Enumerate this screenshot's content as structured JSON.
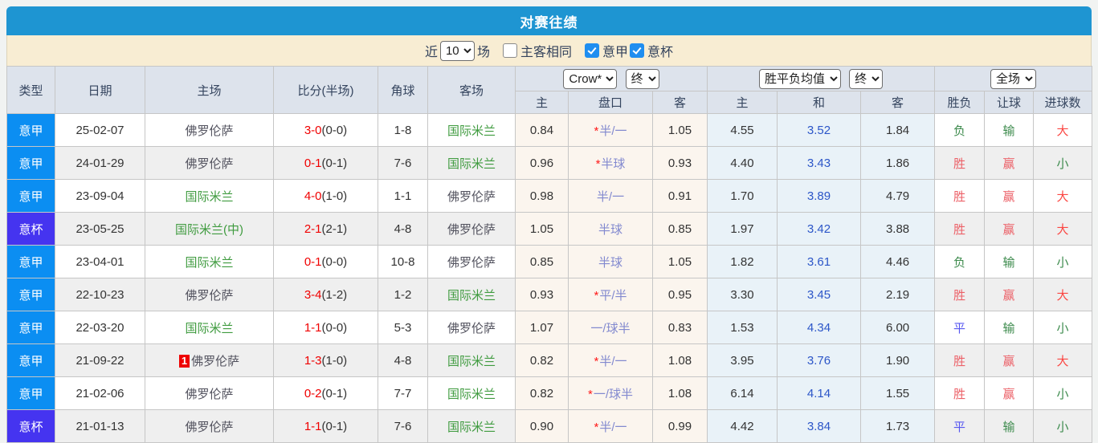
{
  "title": "对赛往绩",
  "filter": {
    "near_label": "近",
    "games_select": "10",
    "games_label": "场",
    "same_venue_label": "主客相同",
    "same_venue_checked": false,
    "seriea_label": "意甲",
    "seriea_checked": true,
    "coppa_label": "意杯",
    "coppa_checked": true
  },
  "header": {
    "col_type": "类型",
    "col_date": "日期",
    "col_home": "主场",
    "col_score": "比分(半场)",
    "col_corner": "角球",
    "col_away": "客场",
    "odds_select": "Crow*",
    "odds_period_select": "终",
    "odds_sub": [
      "主",
      "盘口",
      "客"
    ],
    "avg_select": "胜平负均值",
    "avg_period_select": "终",
    "avg_sub": [
      "主",
      "和",
      "客"
    ],
    "scope_select": "全场",
    "result_sub": [
      "胜负",
      "让球",
      "进球数"
    ]
  },
  "colors": {
    "titlebar": "#1e95d2",
    "filterbar": "#f8edd3",
    "seriea_badge": "#0b8ef2",
    "coppa_badge": "#4534f0",
    "score_red": "#f00000",
    "team_green": "#3f9b3f",
    "team_gray": "#52525e",
    "handicap_blue": "#8289cf",
    "avg_draw_blue": "#2c56c8",
    "win_red": "#ec6168",
    "big_red": "#fb4642",
    "lose_green": "#3d8b4d",
    "draw_blue": "#5757f0"
  },
  "table": {
    "rows": [
      {
        "type": "意甲",
        "date": "25-02-07",
        "home": "佛罗伦萨",
        "home_color": "gray",
        "home_badge": "",
        "score": "3-0",
        "half": "(0-0)",
        "corner": "1-8",
        "away": "国际米兰",
        "away_color": "green",
        "odds_home": "0.84",
        "handicap_star": true,
        "handicap": "半/一",
        "odds_away": "1.05",
        "avg_home": "4.55",
        "avg_draw": "3.52",
        "avg_away": "1.84",
        "result": "负",
        "handicap_result": "输",
        "goals": "大"
      },
      {
        "type": "意甲",
        "date": "24-01-29",
        "home": "佛罗伦萨",
        "home_color": "gray",
        "home_badge": "",
        "score": "0-1",
        "half": "(0-1)",
        "corner": "7-6",
        "away": "国际米兰",
        "away_color": "green",
        "odds_home": "0.96",
        "handicap_star": true,
        "handicap": "半球",
        "odds_away": "0.93",
        "avg_home": "4.40",
        "avg_draw": "3.43",
        "avg_away": "1.86",
        "result": "胜",
        "handicap_result": "赢",
        "goals": "小"
      },
      {
        "type": "意甲",
        "date": "23-09-04",
        "home": "国际米兰",
        "home_color": "green",
        "home_badge": "",
        "score": "4-0",
        "half": "(1-0)",
        "corner": "1-1",
        "away": "佛罗伦萨",
        "away_color": "gray",
        "odds_home": "0.98",
        "handicap_star": false,
        "handicap": "半/一",
        "odds_away": "0.91",
        "avg_home": "1.70",
        "avg_draw": "3.89",
        "avg_away": "4.79",
        "result": "胜",
        "handicap_result": "赢",
        "goals": "大"
      },
      {
        "type": "意杯",
        "date": "23-05-25",
        "home": "国际米兰(中)",
        "home_color": "green",
        "home_badge": "",
        "score": "2-1",
        "half": "(2-1)",
        "corner": "4-8",
        "away": "佛罗伦萨",
        "away_color": "gray",
        "odds_home": "1.05",
        "handicap_star": false,
        "handicap": "半球",
        "odds_away": "0.85",
        "avg_home": "1.97",
        "avg_draw": "3.42",
        "avg_away": "3.88",
        "result": "胜",
        "handicap_result": "赢",
        "goals": "大"
      },
      {
        "type": "意甲",
        "date": "23-04-01",
        "home": "国际米兰",
        "home_color": "green",
        "home_badge": "",
        "score": "0-1",
        "half": "(0-0)",
        "corner": "10-8",
        "away": "佛罗伦萨",
        "away_color": "gray",
        "odds_home": "0.85",
        "handicap_star": false,
        "handicap": "半球",
        "odds_away": "1.05",
        "avg_home": "1.82",
        "avg_draw": "3.61",
        "avg_away": "4.46",
        "result": "负",
        "handicap_result": "输",
        "goals": "小"
      },
      {
        "type": "意甲",
        "date": "22-10-23",
        "home": "佛罗伦萨",
        "home_color": "gray",
        "home_badge": "",
        "score": "3-4",
        "half": "(1-2)",
        "corner": "1-2",
        "away": "国际米兰",
        "away_color": "green",
        "odds_home": "0.93",
        "handicap_star": true,
        "handicap": "平/半",
        "odds_away": "0.95",
        "avg_home": "3.30",
        "avg_draw": "3.45",
        "avg_away": "2.19",
        "result": "胜",
        "handicap_result": "赢",
        "goals": "大"
      },
      {
        "type": "意甲",
        "date": "22-03-20",
        "home": "国际米兰",
        "home_color": "green",
        "home_badge": "",
        "score": "1-1",
        "half": "(0-0)",
        "corner": "5-3",
        "away": "佛罗伦萨",
        "away_color": "gray",
        "odds_home": "1.07",
        "handicap_star": false,
        "handicap": "一/球半",
        "odds_away": "0.83",
        "avg_home": "1.53",
        "avg_draw": "4.34",
        "avg_away": "6.00",
        "result": "平",
        "handicap_result": "输",
        "goals": "小"
      },
      {
        "type": "意甲",
        "date": "21-09-22",
        "home": "佛罗伦萨",
        "home_color": "gray",
        "home_badge": "1",
        "score": "1-3",
        "half": "(1-0)",
        "corner": "4-8",
        "away": "国际米兰",
        "away_color": "green",
        "odds_home": "0.82",
        "handicap_star": true,
        "handicap": "半/一",
        "odds_away": "1.08",
        "avg_home": "3.95",
        "avg_draw": "3.76",
        "avg_away": "1.90",
        "result": "胜",
        "handicap_result": "赢",
        "goals": "大"
      },
      {
        "type": "意甲",
        "date": "21-02-06",
        "home": "佛罗伦萨",
        "home_color": "gray",
        "home_badge": "",
        "score": "0-2",
        "half": "(0-1)",
        "corner": "7-7",
        "away": "国际米兰",
        "away_color": "green",
        "odds_home": "0.82",
        "handicap_star": true,
        "handicap": "一/球半",
        "odds_away": "1.08",
        "avg_home": "6.14",
        "avg_draw": "4.14",
        "avg_away": "1.55",
        "result": "胜",
        "handicap_result": "赢",
        "goals": "小"
      },
      {
        "type": "意杯",
        "date": "21-01-13",
        "home": "佛罗伦萨",
        "home_color": "gray",
        "home_badge": "",
        "score": "1-1",
        "half": "(0-1)",
        "corner": "7-6",
        "away": "国际米兰",
        "away_color": "green",
        "odds_home": "0.90",
        "handicap_star": true,
        "handicap": "半/一",
        "odds_away": "0.99",
        "avg_home": "4.42",
        "avg_draw": "3.84",
        "avg_away": "1.73",
        "result": "平",
        "handicap_result": "输",
        "goals": "小"
      }
    ]
  }
}
